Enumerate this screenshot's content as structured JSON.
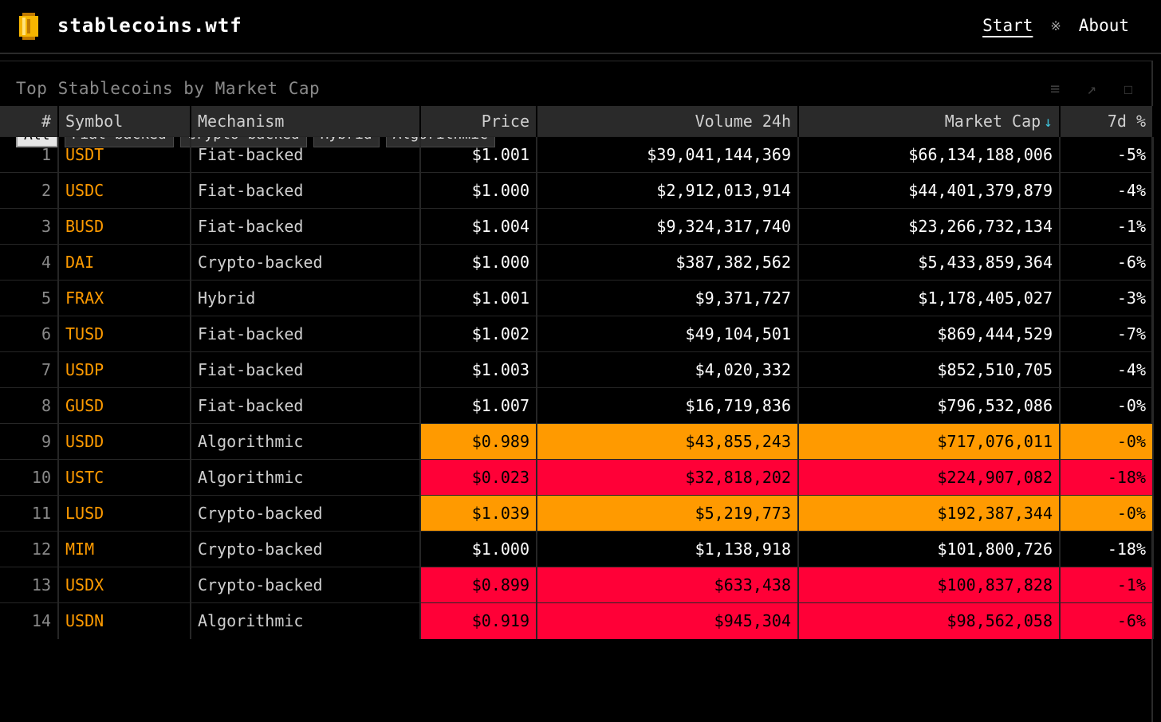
{
  "brand": "stablecoins.wtf",
  "nav": {
    "start": "Start",
    "separator": "※",
    "about": "About"
  },
  "panel": {
    "title": "Top Stablecoins by Market Cap",
    "icons": [
      "menu-icon",
      "expand-icon",
      "fullscreen-icon"
    ]
  },
  "filters": [
    "All",
    "Fiat-backed",
    "Crypto-backed",
    "Hybrid",
    "Algorithmic"
  ],
  "active_filter": "All",
  "columns": [
    "#",
    "Symbol",
    "Mechanism",
    "Price",
    "Volume 24h",
    "Market Cap",
    "7d %"
  ],
  "sort": {
    "column": "Market Cap",
    "direction": "desc",
    "arrow": "↓"
  },
  "colors": {
    "accent_symbol": "#ff9b00",
    "warn": "#ff9a00",
    "danger": "#ff0037",
    "sort_arrow": "#3fc0d8"
  },
  "rows": [
    {
      "idx": "1",
      "symbol": "USDT",
      "mechanism": "Fiat-backed",
      "price": "$1.001",
      "volume": "$39,041,144,369",
      "mcap": "$66,134,188,006",
      "change": "-5%",
      "status": "normal"
    },
    {
      "idx": "2",
      "symbol": "USDC",
      "mechanism": "Fiat-backed",
      "price": "$1.000",
      "volume": "$2,912,013,914",
      "mcap": "$44,401,379,879",
      "change": "-4%",
      "status": "normal"
    },
    {
      "idx": "3",
      "symbol": "BUSD",
      "mechanism": "Fiat-backed",
      "price": "$1.004",
      "volume": "$9,324,317,740",
      "mcap": "$23,266,732,134",
      "change": "-1%",
      "status": "normal"
    },
    {
      "idx": "4",
      "symbol": "DAI",
      "mechanism": "Crypto-backed",
      "price": "$1.000",
      "volume": "$387,382,562",
      "mcap": "$5,433,859,364",
      "change": "-6%",
      "status": "normal"
    },
    {
      "idx": "5",
      "symbol": "FRAX",
      "mechanism": "Hybrid",
      "price": "$1.001",
      "volume": "$9,371,727",
      "mcap": "$1,178,405,027",
      "change": "-3%",
      "status": "normal"
    },
    {
      "idx": "6",
      "symbol": "TUSD",
      "mechanism": "Fiat-backed",
      "price": "$1.002",
      "volume": "$49,104,501",
      "mcap": "$869,444,529",
      "change": "-7%",
      "status": "normal"
    },
    {
      "idx": "7",
      "symbol": "USDP",
      "mechanism": "Fiat-backed",
      "price": "$1.003",
      "volume": "$4,020,332",
      "mcap": "$852,510,705",
      "change": "-4%",
      "status": "normal"
    },
    {
      "idx": "8",
      "symbol": "GUSD",
      "mechanism": "Fiat-backed",
      "price": "$1.007",
      "volume": "$16,719,836",
      "mcap": "$796,532,086",
      "change": "-0%",
      "status": "normal"
    },
    {
      "idx": "9",
      "symbol": "USDD",
      "mechanism": "Algorithmic",
      "price": "$0.989",
      "volume": "$43,855,243",
      "mcap": "$717,076,011",
      "change": "-0%",
      "status": "orange"
    },
    {
      "idx": "10",
      "symbol": "USTC",
      "mechanism": "Algorithmic",
      "price": "$0.023",
      "volume": "$32,818,202",
      "mcap": "$224,907,082",
      "change": "-18%",
      "status": "red"
    },
    {
      "idx": "11",
      "symbol": "LUSD",
      "mechanism": "Crypto-backed",
      "price": "$1.039",
      "volume": "$5,219,773",
      "mcap": "$192,387,344",
      "change": "-0%",
      "status": "orange"
    },
    {
      "idx": "12",
      "symbol": "MIM",
      "mechanism": "Crypto-backed",
      "price": "$1.000",
      "volume": "$1,138,918",
      "mcap": "$101,800,726",
      "change": "-18%",
      "status": "normal"
    },
    {
      "idx": "13",
      "symbol": "USDX",
      "mechanism": "Crypto-backed",
      "price": "$0.899",
      "volume": "$633,438",
      "mcap": "$100,837,828",
      "change": "-1%",
      "status": "red"
    },
    {
      "idx": "14",
      "symbol": "USDN",
      "mechanism": "Algorithmic",
      "price": "$0.919",
      "volume": "$945,304",
      "mcap": "$98,562,058",
      "change": "-6%",
      "status": "red"
    }
  ]
}
